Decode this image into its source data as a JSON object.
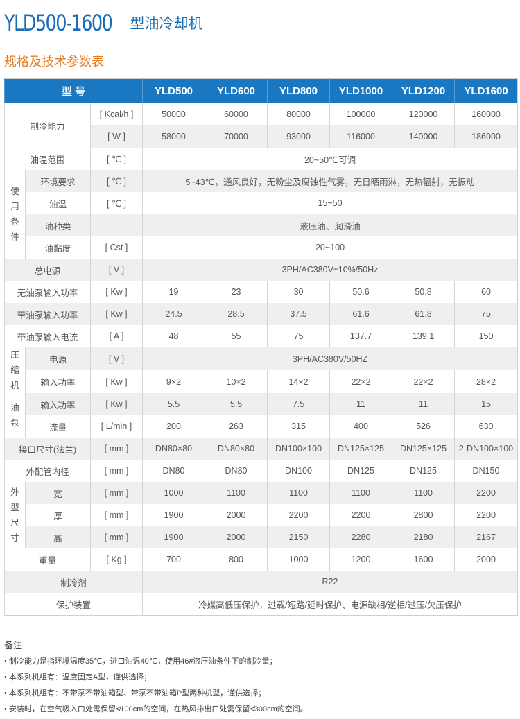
{
  "title": {
    "model": "YLD500-1600",
    "name": "型油冷却机"
  },
  "subtitle": "规格及技术参数表",
  "colors": {
    "header_bg": "#1a78c3",
    "title": "#1b6db5",
    "subtitle": "#e87a1e",
    "stripe": "#efefef"
  },
  "table": {
    "header_label": "型 号",
    "models": [
      "YLD500",
      "YLD600",
      "YLD800",
      "YLD1000",
      "YLD1200",
      "YLD1600"
    ],
    "sections": [
      {
        "label": "制冷能力",
        "rows": [
          {
            "unit": "[ Kcal/h ]",
            "values": [
              "50000",
              "60000",
              "80000",
              "100000",
              "120000",
              "160000"
            ]
          },
          {
            "unit": "[ W ]",
            "values": [
              "58000",
              "70000",
              "93000",
              "116000",
              "140000",
              "186000"
            ]
          }
        ]
      },
      {
        "rows": [
          {
            "label": "油温范围",
            "unit": "[ ℃ ]",
            "value": "20~50℃可调"
          }
        ]
      },
      {
        "group": "使用条件",
        "rows": [
          {
            "label": "环境要求",
            "unit": "[ ℃ ]",
            "value": "5~43℃，通风良好，无粉尘及腐蚀性气雾，无日晒雨淋，无热辐射，无振动"
          },
          {
            "label": "油温",
            "unit": "[ ℃ ]",
            "value": "15~50"
          },
          {
            "label": "油种类",
            "unit": "",
            "value": "液压油、润滑油"
          },
          {
            "label": "油黏度",
            "unit": "[ Cst ]",
            "value": "20~100"
          }
        ]
      },
      {
        "rows": [
          {
            "label": "总电源",
            "unit": "[ V ]",
            "value": "3PH/AC380V±10%/50Hz"
          }
        ]
      },
      {
        "rows": [
          {
            "label": "无油泵输入功率",
            "unit": "[ Kw ]",
            "values": [
              "19",
              "23",
              "30",
              "50.6",
              "50.8",
              "60"
            ]
          }
        ]
      },
      {
        "rows": [
          {
            "label": "带油泵输入功率",
            "unit": "[ Kw ]",
            "values": [
              "24.5",
              "28.5",
              "37.5",
              "61.6",
              "61.8",
              "75"
            ]
          }
        ]
      },
      {
        "rows": [
          {
            "label": "带油泵输入电流",
            "unit": "[ A ]",
            "values": [
              "48",
              "55",
              "75",
              "137.7",
              "139.1",
              "150"
            ]
          }
        ]
      },
      {
        "group": "压缩机",
        "rows": [
          {
            "label": "电源",
            "unit": "[ V ]",
            "value": "3PH/AC380V/50HZ"
          },
          {
            "label": "输入功率",
            "unit": "[ Kw ]",
            "values": [
              "9×2",
              "10×2",
              "14×2",
              "22×2",
              "22×2",
              "28×2"
            ]
          }
        ]
      },
      {
        "group": "油泵",
        "rows": [
          {
            "label": "输入功率",
            "unit": "[ Kw ]",
            "values": [
              "5.5",
              "5.5",
              "7.5",
              "11",
              "11",
              "15"
            ]
          },
          {
            "label": "流量",
            "unit": "[ L/min ]",
            "values": [
              "200",
              "263",
              "315",
              "400",
              "526",
              "630"
            ]
          }
        ]
      },
      {
        "rows": [
          {
            "label": "接口尺寸(法兰)",
            "unit": "[ mm ]",
            "values": [
              "DN80×80",
              "DN80×80",
              "DN100×100",
              "DN125×125",
              "DN125×125",
              "2-DN100×100"
            ]
          }
        ]
      },
      {
        "rows": [
          {
            "label": "外配管内径",
            "unit": "[ mm ]",
            "values": [
              "DN80",
              "DN80",
              "DN100",
              "DN125",
              "DN125",
              "DN150"
            ]
          }
        ]
      },
      {
        "group": "外型尺寸",
        "rows": [
          {
            "label": "宽",
            "unit": "[ mm ]",
            "values": [
              "1000",
              "1100",
              "1100",
              "1100",
              "1100",
              "2200"
            ]
          },
          {
            "label": "厚",
            "unit": "[ mm ]",
            "values": [
              "1900",
              "2000",
              "2200",
              "2200",
              "2800",
              "2200"
            ]
          },
          {
            "label": "高",
            "unit": "[ mm ]",
            "values": [
              "1900",
              "2000",
              "2150",
              "2280",
              "2180",
              "2167"
            ]
          }
        ]
      },
      {
        "rows": [
          {
            "label": "重量",
            "unit": "[ Kg ]",
            "values": [
              "700",
              "800",
              "1000",
              "1200",
              "1600",
              "2000"
            ]
          }
        ]
      },
      {
        "rows": [
          {
            "label": "制冷剂",
            "value": "R22"
          }
        ]
      },
      {
        "rows": [
          {
            "label": "保护装置",
            "value": "冷媒高低压保护，过载/短路/延时保护、电源缺相/逆相/过压/欠压保护"
          }
        ]
      }
    ]
  },
  "notes": {
    "title": "备注",
    "items": [
      "制冷能力是指环境温度35℃，进口油温40℃，使用46#液压油条件下的制冷量；",
      "本系列机组有：温度固定A型，谨供选择；",
      "本系列机组有：不带泵不带油箱型、带泵不带油箱P型两种机型，谨供选择；",
      "安装时，在空气吸入口处需保留≮100cm的空间，在热风排出口处需保留≮300cm的空间。"
    ]
  }
}
